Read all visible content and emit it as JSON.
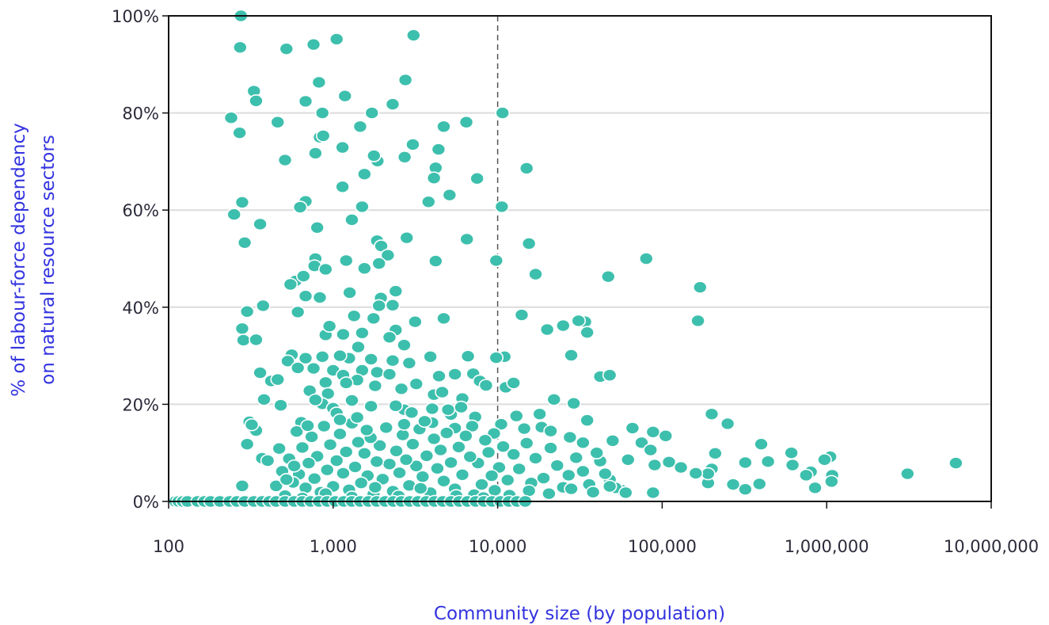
{
  "chart_data": {
    "type": "scatter",
    "title": "",
    "xlabel": "Community size (by population)",
    "ylabel_line1": "% of labour-force dependency",
    "ylabel_line2": "on natural resource sectors",
    "x_scale": "log",
    "xlim": [
      100,
      10000000
    ],
    "ylim": [
      0,
      100
    ],
    "x_ticks": [
      {
        "value": 100,
        "label": "100"
      },
      {
        "value": 1000,
        "label": "1,000"
      },
      {
        "value": 10000,
        "label": "10,000"
      },
      {
        "value": 100000,
        "label": "100,000"
      },
      {
        "value": 1000000,
        "label": "1,000,000"
      },
      {
        "value": 10000000,
        "label": "10,000,000"
      }
    ],
    "y_ticks": [
      {
        "value": 0,
        "label": "0%"
      },
      {
        "value": 20,
        "label": "20%"
      },
      {
        "value": 40,
        "label": "40%"
      },
      {
        "value": 60,
        "label": "60%"
      },
      {
        "value": 80,
        "label": "80%"
      },
      {
        "value": 100,
        "label": "100%"
      }
    ],
    "grid": "horizontal",
    "reference_line_x": 10000,
    "colors": {
      "points": "#3dbfad",
      "point_stroke": "#ffffff",
      "axis_title": "#3333e0",
      "grid": "#dcdcdc",
      "frame": "#111111",
      "reference_line": "#555555"
    },
    "points": [
      [
        275,
        100
      ],
      [
        272,
        93.5
      ],
      [
        3080,
        96
      ],
      [
        1050,
        95.2
      ],
      [
        520,
        93.2
      ],
      [
        760,
        94.1
      ],
      [
        2750,
        86.8
      ],
      [
        820,
        86.3
      ],
      [
        330,
        84.5
      ],
      [
        340,
        82.5
      ],
      [
        1180,
        83.5
      ],
      [
        680,
        82.4
      ],
      [
        2300,
        81.8
      ],
      [
        240,
        79
      ],
      [
        1720,
        80
      ],
      [
        860,
        80
      ],
      [
        10700,
        80
      ],
      [
        460,
        78.1
      ],
      [
        6450,
        78.1
      ],
      [
        4700,
        77.2
      ],
      [
        1460,
        77.2
      ],
      [
        270,
        75.9
      ],
      [
        830,
        75
      ],
      [
        3050,
        73.5
      ],
      [
        870,
        75.3
      ],
      [
        1860,
        70.1
      ],
      [
        2720,
        70.9
      ],
      [
        1770,
        71.2
      ],
      [
        1140,
        72.9
      ],
      [
        780,
        71.7
      ],
      [
        4370,
        72.5
      ],
      [
        510,
        70.3
      ],
      [
        15000,
        68.6
      ],
      [
        4200,
        68.7
      ],
      [
        1550,
        67.4
      ],
      [
        4100,
        66.6
      ],
      [
        7500,
        66.5
      ],
      [
        1140,
        64.8
      ],
      [
        280,
        61.6
      ],
      [
        250,
        59.1
      ],
      [
        680,
        61.8
      ],
      [
        1500,
        60.7
      ],
      [
        630,
        60.6
      ],
      [
        10600,
        60.7
      ],
      [
        3800,
        61.7
      ],
      [
        5100,
        63.1
      ],
      [
        1300,
        58
      ],
      [
        360,
        57.1
      ],
      [
        800,
        56.4
      ],
      [
        290,
        53.3
      ],
      [
        1850,
        53.7
      ],
      [
        1960,
        52.6
      ],
      [
        15500,
        53.1
      ],
      [
        2800,
        54.3
      ],
      [
        6500,
        54
      ],
      [
        2150,
        50.7
      ],
      [
        780,
        50
      ],
      [
        1200,
        49.6
      ],
      [
        4200,
        49.5
      ],
      [
        9800,
        49.6
      ],
      [
        1900,
        49
      ],
      [
        770,
        48.5
      ],
      [
        1550,
        48
      ],
      [
        900,
        47.8
      ],
      [
        17000,
        46.8
      ],
      [
        80000,
        50
      ],
      [
        47000,
        46.3
      ],
      [
        170000,
        44.1
      ],
      [
        590,
        45.4
      ],
      [
        660,
        46.4
      ],
      [
        550,
        44.7
      ],
      [
        1950,
        41.9
      ],
      [
        2400,
        43.3
      ],
      [
        1260,
        43
      ],
      [
        680,
        42.3
      ],
      [
        830,
        42
      ],
      [
        1900,
        40.3
      ],
      [
        2300,
        40.4
      ],
      [
        375,
        40.3
      ],
      [
        300,
        39.1
      ],
      [
        610,
        39
      ],
      [
        14000,
        38.4
      ],
      [
        34000,
        37
      ],
      [
        31000,
        37.2
      ],
      [
        4700,
        37.7
      ],
      [
        3150,
        37
      ],
      [
        1340,
        38.2
      ],
      [
        1760,
        37.7
      ],
      [
        280,
        35.6
      ],
      [
        900,
        34.3
      ],
      [
        1150,
        34.4
      ],
      [
        1500,
        34.7
      ],
      [
        2400,
        35.3
      ],
      [
        20000,
        35.4
      ],
      [
        25000,
        36.2
      ],
      [
        35000,
        34.8
      ],
      [
        165000,
        37.2
      ],
      [
        285,
        33.2
      ],
      [
        340,
        33.3
      ],
      [
        2200,
        33.8
      ],
      [
        1420,
        31.8
      ],
      [
        2700,
        32.2
      ],
      [
        950,
        36.1
      ],
      [
        28000,
        30.1
      ],
      [
        11000,
        29.8
      ],
      [
        9800,
        29.6
      ],
      [
        6600,
        29.9
      ],
      [
        3900,
        29.8
      ],
      [
        2900,
        28.5
      ],
      [
        1700,
        29.3
      ],
      [
        2300,
        29
      ],
      [
        1250,
        29.5
      ],
      [
        1100,
        30
      ],
      [
        860,
        29.8
      ],
      [
        680,
        29.5
      ],
      [
        560,
        30.2
      ],
      [
        530,
        28.9
      ],
      [
        1500,
        27
      ],
      [
        1850,
        26.6
      ],
      [
        2200,
        26.2
      ],
      [
        1000,
        27
      ],
      [
        1150,
        26
      ],
      [
        760,
        27.4
      ],
      [
        610,
        27.5
      ],
      [
        360,
        26.5
      ],
      [
        42000,
        25.7
      ],
      [
        48000,
        26
      ],
      [
        4400,
        25.8
      ],
      [
        5500,
        26.2
      ],
      [
        7100,
        26.3
      ],
      [
        7800,
        24.8
      ],
      [
        8500,
        23.9
      ],
      [
        11200,
        23.5
      ],
      [
        12500,
        24.4
      ],
      [
        3200,
        24.2
      ],
      [
        2600,
        23.2
      ],
      [
        1800,
        23.8
      ],
      [
        1400,
        25
      ],
      [
        1200,
        24.4
      ],
      [
        900,
        24.5
      ],
      [
        420,
        24.8
      ],
      [
        460,
        25.1
      ],
      [
        720,
        22.8
      ],
      [
        930,
        22.2
      ],
      [
        4100,
        22
      ],
      [
        4600,
        22.5
      ],
      [
        6100,
        21.2
      ],
      [
        22000,
        21
      ],
      [
        29000,
        20.2
      ],
      [
        380,
        21
      ],
      [
        860,
        20.1
      ],
      [
        1700,
        19.6
      ],
      [
        2700,
        18.9
      ],
      [
        4000,
        19.1
      ],
      [
        1300,
        20.8
      ],
      [
        780,
        20.9
      ],
      [
        480,
        19.8
      ],
      [
        200000,
        18
      ],
      [
        1000,
        19.2
      ],
      [
        13000,
        17.6
      ],
      [
        18000,
        18
      ],
      [
        250000,
        16
      ],
      [
        310,
        16.4
      ],
      [
        640,
        16.3
      ],
      [
        1050,
        18.2
      ],
      [
        3000,
        18.3
      ],
      [
        5200,
        17.9
      ],
      [
        7300,
        17.4
      ],
      [
        10500,
        15.9
      ],
      [
        35000,
        16.7
      ],
      [
        66000,
        15.1
      ],
      [
        88000,
        14.3
      ],
      [
        105000,
        13.5
      ],
      [
        340,
        14.6
      ],
      [
        320,
        15.8
      ],
      [
        300,
        11.8
      ],
      [
        280,
        3.2
      ],
      [
        370,
        8.9
      ],
      [
        400,
        8.4
      ],
      [
        7000,
        15.5
      ],
      [
        5500,
        15.1
      ],
      [
        9500,
        14
      ],
      [
        14500,
        15
      ],
      [
        18500,
        15.3
      ],
      [
        21000,
        14.5
      ],
      [
        27500,
        13.2
      ],
      [
        33000,
        12.1
      ],
      [
        50000,
        12.5
      ],
      [
        75000,
        12.1
      ],
      [
        320000,
        8
      ],
      [
        400000,
        11.8
      ],
      [
        440000,
        8.2
      ],
      [
        610000,
        10
      ],
      [
        620000,
        7.5
      ],
      [
        3100000,
        5.7
      ],
      [
        6100000,
        7.9
      ],
      [
        1050000,
        9.2
      ],
      [
        970000,
        8.6
      ],
      [
        1080000,
        5.4
      ],
      [
        1070000,
        4.1
      ],
      [
        800000,
        6.1
      ],
      [
        750000,
        5.4
      ],
      [
        850000,
        2.8
      ],
      [
        390000,
        3.6
      ],
      [
        320000,
        2.5
      ],
      [
        270000,
        3.5
      ],
      [
        190000,
        3.8
      ],
      [
        200000,
        6.7
      ],
      [
        210000,
        9.9
      ],
      [
        190000,
        5.7
      ],
      [
        110000,
        8.1
      ],
      [
        130000,
        7
      ],
      [
        160000,
        5.8
      ],
      [
        88000,
        1.8
      ],
      [
        90000,
        7.5
      ],
      [
        85000,
        10.6
      ],
      [
        62000,
        8.6
      ],
      [
        57000,
        2.3
      ],
      [
        52000,
        2.8
      ],
      [
        48000,
        4.5
      ],
      [
        45000,
        5.7
      ],
      [
        42000,
        8.3
      ],
      [
        40000,
        10
      ],
      [
        36000,
        3.5
      ],
      [
        33000,
        6.2
      ],
      [
        30000,
        9
      ],
      [
        27000,
        5.4
      ],
      [
        25000,
        2.9
      ],
      [
        23000,
        7.4
      ],
      [
        21000,
        11
      ],
      [
        19000,
        4.8
      ],
      [
        17000,
        8.9
      ],
      [
        16000,
        3.8
      ],
      [
        15000,
        12
      ],
      [
        13500,
        6.7
      ],
      [
        12500,
        9.7
      ],
      [
        11500,
        4.4
      ],
      [
        10800,
        11.3
      ],
      [
        10200,
        7
      ],
      [
        9600,
        2.3
      ],
      [
        9200,
        5.3
      ],
      [
        8800,
        10.1
      ],
      [
        8400,
        12.6
      ],
      [
        8000,
        3.5
      ],
      [
        7600,
        7.9
      ],
      [
        7200,
        1.4
      ],
      [
        6800,
        9.2
      ],
      [
        6400,
        13.5
      ],
      [
        6100,
        5.5
      ],
      [
        5800,
        11.2
      ],
      [
        5500,
        2.6
      ],
      [
        5200,
        8
      ],
      [
        4900,
        14.1
      ],
      [
        4700,
        4.2
      ],
      [
        4500,
        10.6
      ],
      [
        4300,
        6.8
      ],
      [
        4100,
        12.9
      ],
      [
        3900,
        1.8
      ],
      [
        3700,
        9.4
      ],
      [
        3500,
        5.1
      ],
      [
        3350,
        14.9
      ],
      [
        3200,
        7.3
      ],
      [
        3050,
        11.8
      ],
      [
        2900,
        3.3
      ],
      [
        2780,
        8.6
      ],
      [
        2650,
        13.7
      ],
      [
        2530,
        5.9
      ],
      [
        2420,
        10.4
      ],
      [
        2310,
        2.1
      ],
      [
        2200,
        7.7
      ],
      [
        2100,
        15.2
      ],
      [
        2000,
        4.6
      ],
      [
        1920,
        11.5
      ],
      [
        1840,
        8.2
      ],
      [
        1760,
        1.5
      ],
      [
        1690,
        13.1
      ],
      [
        1620,
        5.3
      ],
      [
        1550,
        9.9
      ],
      [
        1480,
        3.8
      ],
      [
        1420,
        12.2
      ],
      [
        1360,
        7.1
      ],
      [
        1300,
        16.1
      ],
      [
        1250,
        2.4
      ],
      [
        1200,
        10.2
      ],
      [
        1150,
        5.8
      ],
      [
        1100,
        13.9
      ],
      [
        1050,
        8.4
      ],
      [
        1000,
        3.1
      ],
      [
        960,
        11.7
      ],
      [
        920,
        6.5
      ],
      [
        880,
        15.5
      ],
      [
        840,
        1.9
      ],
      [
        800,
        9.3
      ],
      [
        770,
        4.7
      ],
      [
        740,
        13.3
      ],
      [
        710,
        7.9
      ],
      [
        680,
        2.8
      ],
      [
        650,
        11.1
      ],
      [
        620,
        5.6
      ],
      [
        600,
        14.4
      ],
      [
        570,
        3.9
      ],
      [
        540,
        8.8
      ],
      [
        510,
        1.2
      ],
      [
        490,
        6.2
      ],
      [
        470,
        10.9
      ],
      [
        450,
        3.2
      ],
      [
        4000,
        16.2
      ],
      [
        5600,
        1.2
      ],
      [
        8200,
        0.8
      ],
      [
        11800,
        1.3
      ],
      [
        15500,
        2.2
      ],
      [
        20500,
        1.6
      ],
      [
        28000,
        2.6
      ],
      [
        38000,
        1.9
      ],
      [
        48000,
        3.1
      ],
      [
        60000,
        1.8
      ],
      [
        3400,
        2.7
      ],
      [
        2500,
        1.1
      ],
      [
        1800,
        2.9
      ],
      [
        1300,
        0.9
      ],
      [
        900,
        1.6
      ],
      [
        650,
        0.7
      ],
      [
        520,
        4.5
      ],
      [
        580,
        7.3
      ],
      [
        3600,
        16.5
      ],
      [
        2700,
        15.9
      ],
      [
        1600,
        14.7
      ],
      [
        1100,
        16.8
      ],
      [
        700,
        15.6
      ],
      [
        1400,
        17.3
      ],
      [
        2400,
        19.7
      ],
      [
        5000,
        18.9
      ],
      [
        6000,
        19.4
      ],
      [
        110,
        0
      ],
      [
        115,
        0
      ],
      [
        122,
        0
      ],
      [
        130,
        0
      ],
      [
        150,
        0
      ],
      [
        165,
        0
      ],
      [
        180,
        0
      ],
      [
        205,
        0
      ],
      [
        235,
        0
      ],
      [
        260,
        0
      ],
      [
        290,
        0
      ],
      [
        330,
        0
      ],
      [
        370,
        0
      ],
      [
        410,
        0
      ],
      [
        450,
        0
      ],
      [
        510,
        0
      ],
      [
        580,
        0
      ],
      [
        650,
        0
      ],
      [
        730,
        0
      ],
      [
        820,
        0
      ],
      [
        920,
        0
      ],
      [
        1030,
        0
      ],
      [
        1160,
        0
      ],
      [
        1300,
        0
      ],
      [
        1460,
        0
      ],
      [
        1640,
        0
      ],
      [
        1840,
        0
      ],
      [
        2070,
        0
      ],
      [
        2320,
        0
      ],
      [
        2600,
        0
      ],
      [
        2920,
        0
      ],
      [
        3280,
        0
      ],
      [
        3680,
        0
      ],
      [
        4130,
        0
      ],
      [
        4640,
        0
      ],
      [
        5200,
        0
      ],
      [
        5840,
        0
      ],
      [
        6550,
        0
      ],
      [
        7350,
        0
      ],
      [
        8250,
        0
      ],
      [
        9250,
        0
      ],
      [
        10400,
        0
      ],
      [
        11700,
        0
      ],
      [
        13100,
        0
      ],
      [
        14700,
        0
      ]
    ]
  }
}
